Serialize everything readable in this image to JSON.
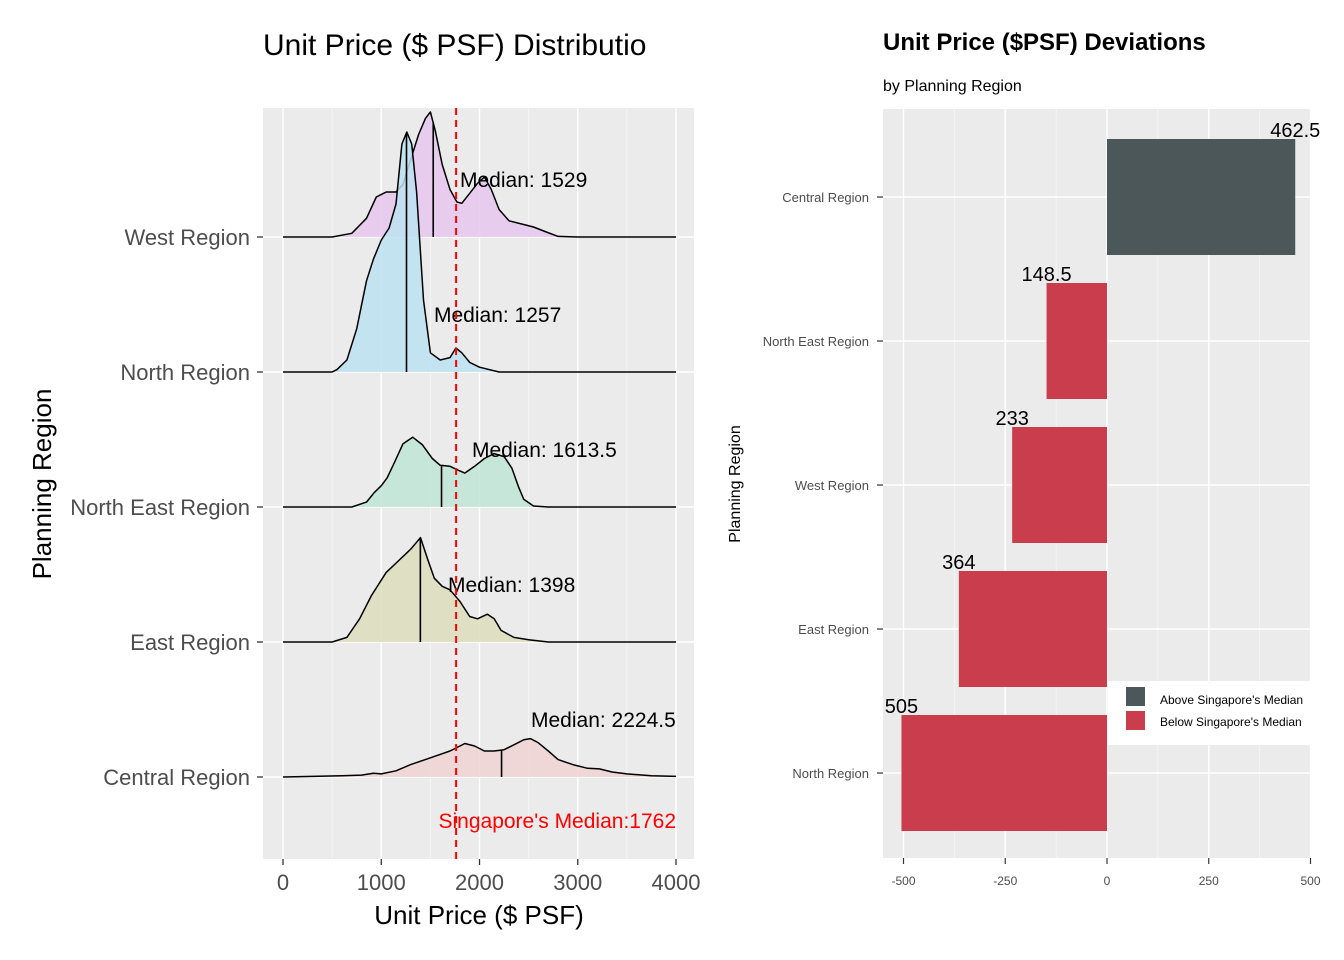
{
  "chart_data": [
    {
      "type": "ridgeline",
      "title": "Unit Price ($ PSF) Distributio",
      "xlabel": "Unit Price ($ PSF)",
      "ylabel": "Planning Region",
      "xlim": [
        0,
        4000
      ],
      "xticks": [
        "0",
        "1000",
        "2000",
        "3000",
        "4000"
      ],
      "reference_line": {
        "value": 1762,
        "label": "Singapore's Median:1762",
        "color": "#ff0000"
      },
      "series": [
        {
          "name": "West Region",
          "median": 1529,
          "median_label": "Median: 1529",
          "color": "#e8c7ef",
          "density": [
            [
              0,
              0
            ],
            [
              500,
              0
            ],
            [
              700,
              0.03
            ],
            [
              850,
              0.15
            ],
            [
              950,
              0.32
            ],
            [
              1050,
              0.36
            ],
            [
              1150,
              0.36
            ],
            [
              1220,
              0.42
            ],
            [
              1300,
              0.62
            ],
            [
              1380,
              0.82
            ],
            [
              1450,
              0.95
            ],
            [
              1500,
              1.0
            ],
            [
              1550,
              0.85
            ],
            [
              1620,
              0.58
            ],
            [
              1700,
              0.38
            ],
            [
              1770,
              0.28
            ],
            [
              1820,
              0.27
            ],
            [
              1900,
              0.35
            ],
            [
              1980,
              0.43
            ],
            [
              2050,
              0.48
            ],
            [
              2120,
              0.38
            ],
            [
              2200,
              0.22
            ],
            [
              2300,
              0.13
            ],
            [
              2450,
              0.1
            ],
            [
              2550,
              0.08
            ],
            [
              2680,
              0.04
            ],
            [
              2800,
              0.005
            ],
            [
              3000,
              0
            ],
            [
              4000,
              0
            ]
          ]
        },
        {
          "name": "North Region",
          "median": 1257,
          "median_label": "Median: 1257",
          "color": "#bde2f2",
          "density": [
            [
              0,
              0
            ],
            [
              500,
              0
            ],
            [
              550,
              0.01
            ],
            [
              650,
              0.05
            ],
            [
              750,
              0.18
            ],
            [
              850,
              0.38
            ],
            [
              920,
              0.47
            ],
            [
              1000,
              0.55
            ],
            [
              1080,
              0.6
            ],
            [
              1150,
              0.7
            ],
            [
              1210,
              0.95
            ],
            [
              1260,
              1.0
            ],
            [
              1310,
              0.95
            ],
            [
              1360,
              0.75
            ],
            [
              1430,
              0.3
            ],
            [
              1500,
              0.08
            ],
            [
              1600,
              0.05
            ],
            [
              1700,
              0.06
            ],
            [
              1760,
              0.1
            ],
            [
              1820,
              0.08
            ],
            [
              1900,
              0.04
            ],
            [
              2000,
              0.02
            ],
            [
              2200,
              0
            ],
            [
              4000,
              0
            ]
          ]
        },
        {
          "name": "North East Region",
          "median": 1613.5,
          "median_label": "Median: 1613.5",
          "color": "#bfe5d6",
          "density": [
            [
              0,
              0
            ],
            [
              700,
              0
            ],
            [
              850,
              0.05
            ],
            [
              930,
              0.15
            ],
            [
              1000,
              0.22
            ],
            [
              1060,
              0.3
            ],
            [
              1130,
              0.45
            ],
            [
              1220,
              0.65
            ],
            [
              1320,
              0.72
            ],
            [
              1420,
              0.64
            ],
            [
              1520,
              0.5
            ],
            [
              1600,
              0.43
            ],
            [
              1700,
              0.42
            ],
            [
              1780,
              0.38
            ],
            [
              1850,
              0.35
            ],
            [
              1950,
              0.42
            ],
            [
              2050,
              0.5
            ],
            [
              2150,
              0.55
            ],
            [
              2250,
              0.52
            ],
            [
              2330,
              0.4
            ],
            [
              2400,
              0.2
            ],
            [
              2450,
              0.08
            ],
            [
              2550,
              0.01
            ],
            [
              2700,
              0
            ],
            [
              4000,
              0
            ]
          ]
        },
        {
          "name": "East Region",
          "median": 1398,
          "median_label": "Median: 1398",
          "color": "#dcddbc",
          "density": [
            [
              0,
              0
            ],
            [
              500,
              0
            ],
            [
              650,
              0.04
            ],
            [
              780,
              0.2
            ],
            [
              900,
              0.4
            ],
            [
              1050,
              0.6
            ],
            [
              1200,
              0.72
            ],
            [
              1300,
              0.8
            ],
            [
              1400,
              0.9
            ],
            [
              1470,
              0.72
            ],
            [
              1540,
              0.55
            ],
            [
              1620,
              0.48
            ],
            [
              1700,
              0.45
            ],
            [
              1800,
              0.35
            ],
            [
              1900,
              0.22
            ],
            [
              1980,
              0.2
            ],
            [
              2080,
              0.24
            ],
            [
              2150,
              0.2
            ],
            [
              2220,
              0.1
            ],
            [
              2350,
              0.04
            ],
            [
              2500,
              0.02
            ],
            [
              2700,
              0
            ],
            [
              4000,
              0
            ]
          ]
        },
        {
          "name": "Central Region",
          "median": 2224.5,
          "median_label": "Median: 2224.5",
          "color": "#f0d3d3",
          "density": [
            [
              0,
              0
            ],
            [
              300,
              0.01
            ],
            [
              600,
              0.02
            ],
            [
              800,
              0.03
            ],
            [
              920,
              0.06
            ],
            [
              1000,
              0.05
            ],
            [
              1150,
              0.1
            ],
            [
              1300,
              0.2
            ],
            [
              1500,
              0.31
            ],
            [
              1700,
              0.42
            ],
            [
              1800,
              0.5
            ],
            [
              1850,
              0.54
            ],
            [
              1950,
              0.5
            ],
            [
              2050,
              0.42
            ],
            [
              2150,
              0.42
            ],
            [
              2250,
              0.44
            ],
            [
              2350,
              0.52
            ],
            [
              2450,
              0.6
            ],
            [
              2520,
              0.62
            ],
            [
              2600,
              0.55
            ],
            [
              2700,
              0.42
            ],
            [
              2800,
              0.28
            ],
            [
              2950,
              0.2
            ],
            [
              3100,
              0.14
            ],
            [
              3220,
              0.13
            ],
            [
              3350,
              0.08
            ],
            [
              3500,
              0.05
            ],
            [
              3750,
              0.02
            ],
            [
              4000,
              0.01
            ]
          ]
        }
      ]
    },
    {
      "type": "bar",
      "orientation": "horizontal",
      "title": "Unit Price ($PSF) Deviations",
      "subtitle": "by Planning Region",
      "ylabel": "Planning Region",
      "xlim": [
        -520,
        500
      ],
      "xticks": [
        "-500",
        "-250",
        "0",
        "250",
        "500"
      ],
      "categories": [
        "Central Region",
        "North East Region",
        "West Region",
        "East Region",
        "North Region"
      ],
      "values": [
        462.5,
        -148.5,
        -233,
        -364,
        -505
      ],
      "labels": [
        "462.5",
        "148.5",
        "233",
        "364",
        "505"
      ],
      "legend": [
        {
          "name": "Above Singapore's Median",
          "color": "#4b5759"
        },
        {
          "name": "Below Singapore's Median",
          "color": "#c93d4d"
        }
      ]
    }
  ]
}
